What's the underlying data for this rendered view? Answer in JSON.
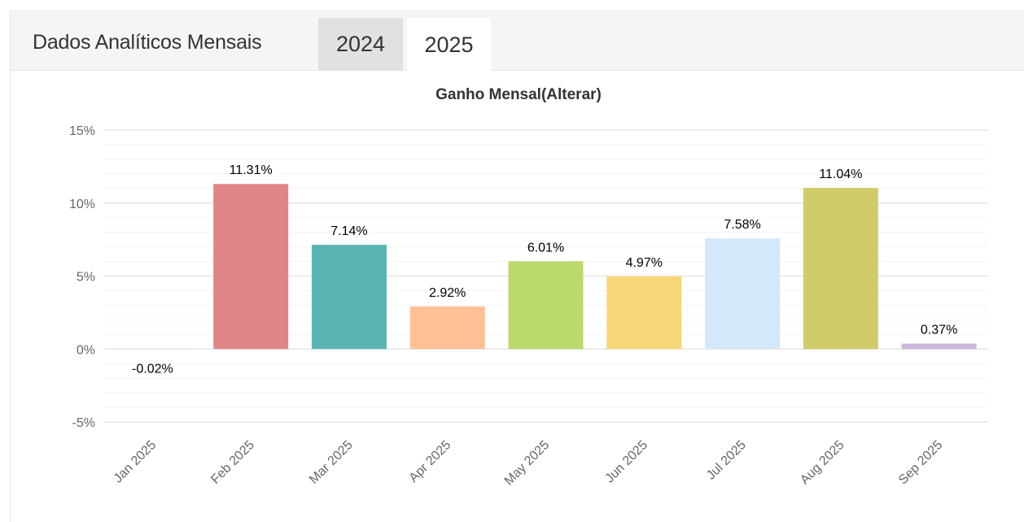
{
  "header": {
    "title": "Dados Analíticos Mensais",
    "tabs": [
      {
        "label": "2024",
        "active": false
      },
      {
        "label": "2025",
        "active": true
      }
    ]
  },
  "colors": {
    "grid": "#e6e6e6",
    "minor_grid": "#f3f3f3",
    "tick_text": "#666666",
    "label_text": "#000000"
  },
  "chart_data": {
    "type": "bar",
    "title": "Ganho Mensal(Alterar)",
    "xlabel": "",
    "ylabel": "",
    "categories": [
      "Jan 2025",
      "Feb 2025",
      "Mar 2025",
      "Apr 2025",
      "May 2025",
      "Jun 2025",
      "Jul 2025",
      "Aug 2025",
      "Sep 2025"
    ],
    "values": [
      -0.02,
      11.31,
      7.14,
      2.92,
      6.01,
      4.97,
      7.58,
      11.04,
      0.37
    ],
    "value_labels": [
      "-0.02%",
      "11.31%",
      "7.14%",
      "2.92%",
      "6.01%",
      "4.97%",
      "7.58%",
      "11.04%",
      "0.37%"
    ],
    "bar_colors": [
      "#e0e0e0",
      "#e08585",
      "#5ab4b4",
      "#ffc096",
      "#bcd96c",
      "#f6d676",
      "#d3e8f8",
      "#d0cc6a",
      "#ccb8dc"
    ],
    "y_ticks": [
      15,
      10,
      5,
      0,
      -5
    ],
    "y_tick_labels": [
      "15%",
      "10%",
      "5%",
      "0%",
      "-5%"
    ],
    "ylim": [
      -5,
      15
    ],
    "grid": true,
    "legend": "none"
  }
}
